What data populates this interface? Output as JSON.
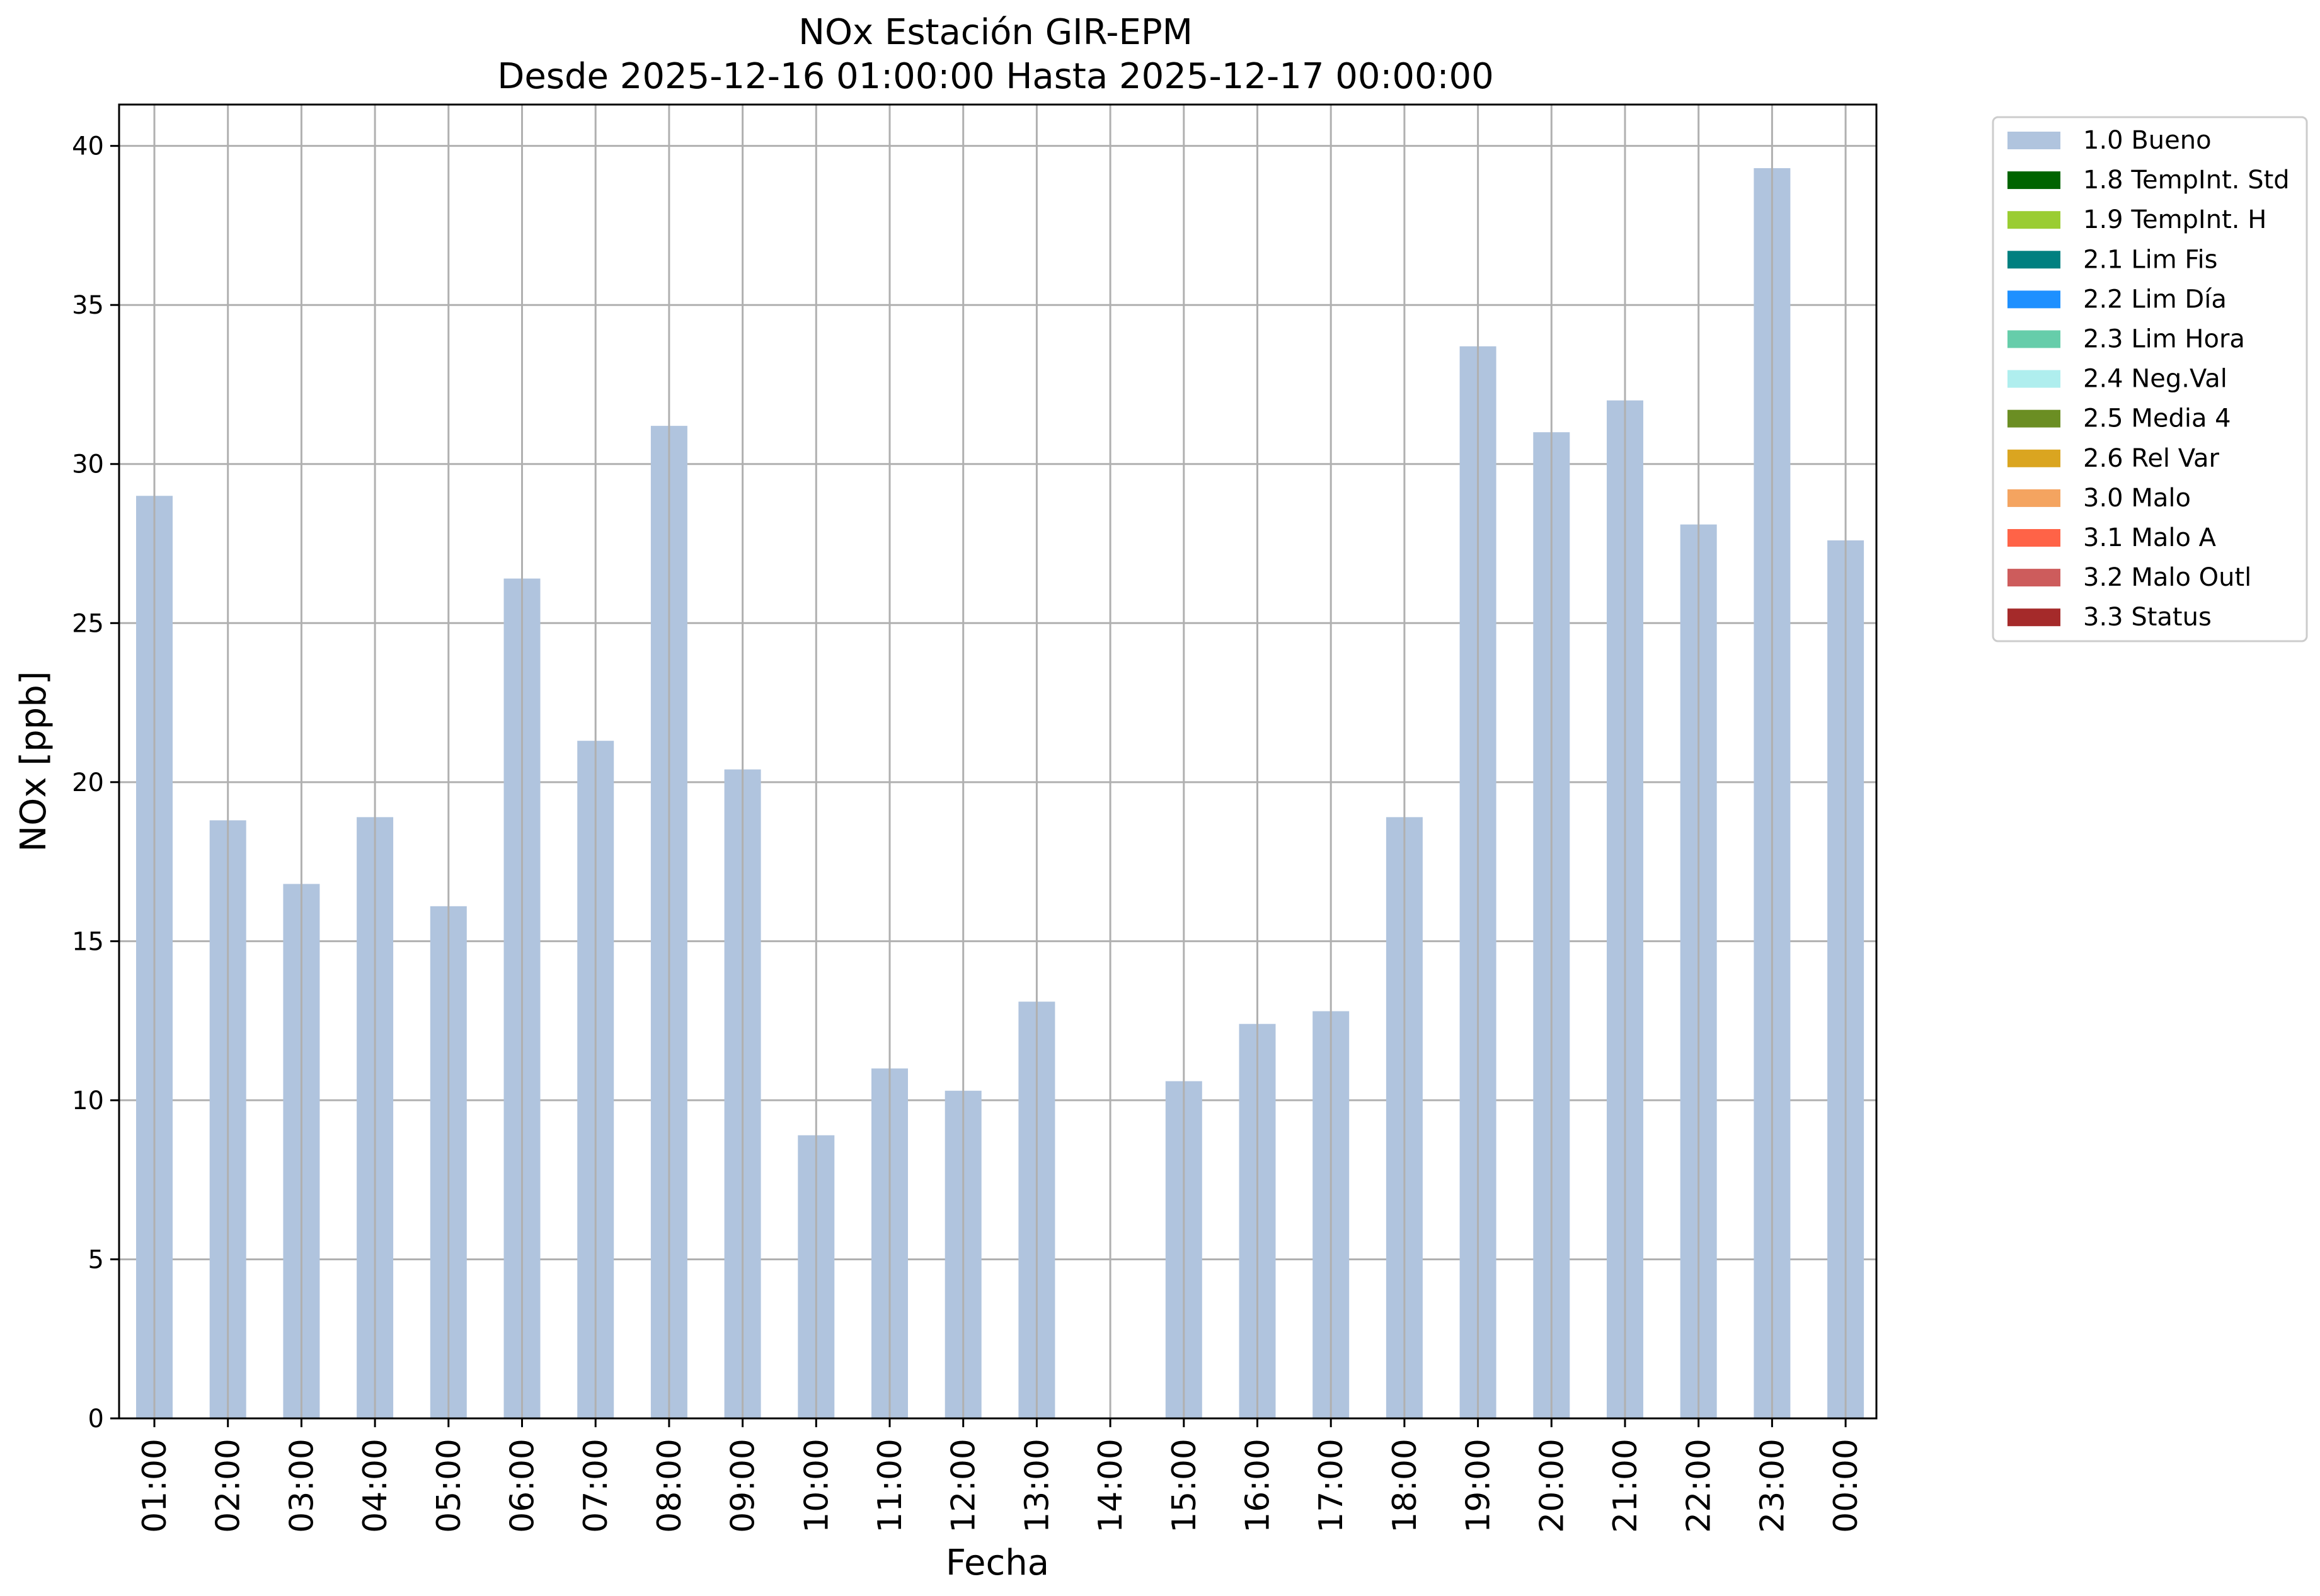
{
  "chart_data": {
    "type": "bar",
    "title_line1": "NOx Estación GIR-EPM",
    "title_line2": "Desde 2025-12-16 01:00:00 Hasta 2025-12-17 00:00:00",
    "xlabel": "Fecha",
    "ylabel": "NOx [ppb]",
    "ylim": [
      0,
      41.3
    ],
    "yticks": [
      0,
      5,
      10,
      15,
      20,
      25,
      30,
      35,
      40
    ],
    "grid": true,
    "legend_position": "outside-right",
    "categories": [
      "01:00",
      "02:00",
      "03:00",
      "04:00",
      "05:00",
      "06:00",
      "07:00",
      "08:00",
      "09:00",
      "10:00",
      "11:00",
      "12:00",
      "13:00",
      "14:00",
      "15:00",
      "16:00",
      "17:00",
      "18:00",
      "19:00",
      "20:00",
      "21:00",
      "22:00",
      "23:00",
      "00:00"
    ],
    "series": [
      {
        "name": "1.0 Bueno",
        "color": "#b0c4de",
        "values": [
          29.0,
          18.8,
          16.8,
          18.9,
          16.1,
          26.4,
          21.3,
          31.2,
          20.4,
          8.9,
          11.0,
          10.3,
          13.1,
          null,
          10.6,
          12.4,
          12.8,
          18.9,
          33.7,
          31.0,
          32.0,
          28.1,
          39.3,
          27.6
        ]
      }
    ],
    "legend": [
      {
        "label": "1.0 Bueno",
        "color": "#b0c4de"
      },
      {
        "label": "1.8 TempInt. Std",
        "color": "#006400"
      },
      {
        "label": "1.9 TempInt. H",
        "color": "#9acd32"
      },
      {
        "label": "2.1 Lim Fis",
        "color": "#008080"
      },
      {
        "label": "2.2 Lim Día",
        "color": "#1e90ff"
      },
      {
        "label": "2.3 Lim Hora",
        "color": "#66cdaa"
      },
      {
        "label": "2.4 Neg.Val",
        "color": "#afeeee"
      },
      {
        "label": "2.5 Media 4",
        "color": "#6b8e23"
      },
      {
        "label": "2.6 Rel Var",
        "color": "#daa520"
      },
      {
        "label": "3.0 Malo",
        "color": "#f4a460"
      },
      {
        "label": "3.1 Malo A",
        "color": "#ff6347"
      },
      {
        "label": "3.2 Malo Outl",
        "color": "#cd5c5c"
      },
      {
        "label": "3.3 Status",
        "color": "#a52a2a"
      }
    ]
  }
}
